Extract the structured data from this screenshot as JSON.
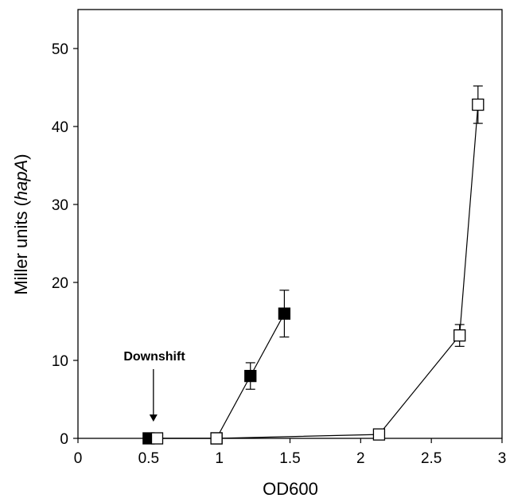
{
  "chart_data": {
    "type": "scatter",
    "title": "",
    "xlabel": "OD600",
    "ylabel_prefix": "Miller units (",
    "ylabel_italic": "hapA",
    "ylabel_suffix": ")",
    "xlim": [
      0,
      3
    ],
    "ylim": [
      0,
      55
    ],
    "xticks": [
      0,
      0.5,
      1,
      1.5,
      2,
      2.5,
      3
    ],
    "xtick_labels": [
      "0",
      "0.5",
      "1",
      "1.5",
      "2",
      "2.5",
      "3"
    ],
    "yticks": [
      0,
      10,
      20,
      30,
      40,
      50
    ],
    "ytick_labels": [
      "0",
      "10",
      "20",
      "30",
      "40",
      "50"
    ],
    "grid": false,
    "legend": "none",
    "annotation": {
      "text": "Downshift",
      "x": 0.5,
      "y": 0
    },
    "series": [
      {
        "marker": "filled-square",
        "color": "#000000",
        "x": [
          0.5,
          0.98,
          1.22,
          1.46
        ],
        "y": [
          0,
          0,
          8,
          16
        ],
        "err": [
          0,
          0,
          1.7,
          3
        ]
      },
      {
        "marker": "open-square",
        "color": "#000000",
        "x": [
          0.56,
          0.98,
          2.13,
          2.7,
          2.83
        ],
        "y": [
          0,
          0,
          0.5,
          13.2,
          42.8
        ],
        "err": [
          0,
          0,
          0,
          1.4,
          2.4
        ]
      }
    ]
  }
}
